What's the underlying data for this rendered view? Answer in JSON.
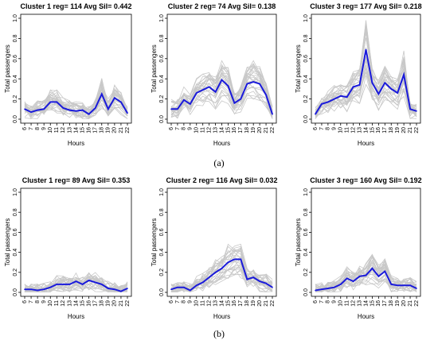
{
  "figure": {
    "row_labels": [
      "(a)",
      "(b)"
    ],
    "colors": {
      "mean_line": "#1a1adb",
      "member_lines": "#c8c8c8",
      "axis": "#000000"
    }
  },
  "chart_data": [
    {
      "type": "line",
      "title": "Cluster 1 reg= 114 Avg Sil= 0.442",
      "xlabel": "Hours",
      "ylabel": "Total passengers",
      "x": [
        6,
        7,
        8,
        9,
        10,
        11,
        12,
        13,
        14,
        15,
        16,
        17,
        18,
        19,
        20,
        21,
        22
      ],
      "ylim": [
        0,
        1.0
      ],
      "yticks": [
        "0.0",
        "0.2",
        "0.4",
        "0.6",
        "0.8",
        "1.0"
      ],
      "series": [
        {
          "values": [
            0.1,
            0.07,
            0.09,
            0.1,
            0.17,
            0.17,
            0.11,
            0.09,
            0.08,
            0.09,
            0.05,
            0.11,
            0.25,
            0.1,
            0.21,
            0.17,
            0.06
          ]
        }
      ]
    },
    {
      "type": "line",
      "title": "Cluster 2 reg= 74 Avg Sil= 0.138",
      "xlabel": "Hours",
      "ylabel": "Total passengers",
      "x": [
        6,
        7,
        8,
        9,
        10,
        11,
        12,
        13,
        14,
        15,
        16,
        17,
        18,
        19,
        20,
        21,
        22
      ],
      "ylim": [
        0,
        1.0
      ],
      "yticks": [
        "0.0",
        "0.2",
        "0.4",
        "0.6",
        "0.8",
        "1.0"
      ],
      "series": [
        {
          "values": [
            0.1,
            0.1,
            0.19,
            0.15,
            0.26,
            0.29,
            0.32,
            0.27,
            0.39,
            0.33,
            0.16,
            0.2,
            0.35,
            0.37,
            0.35,
            0.24,
            0.05
          ]
        }
      ]
    },
    {
      "type": "line",
      "title": "Cluster 3 reg= 177 Avg Sil= 0.218",
      "xlabel": "Hours",
      "ylabel": "Total passengers",
      "x": [
        6,
        7,
        8,
        9,
        10,
        11,
        12,
        13,
        14,
        15,
        16,
        17,
        18,
        19,
        20,
        21,
        22
      ],
      "ylim": [
        0,
        1.0
      ],
      "yticks": [
        "0.0",
        "0.2",
        "0.4",
        "0.6",
        "0.8",
        "1.0"
      ],
      "series": [
        {
          "values": [
            0.05,
            0.15,
            0.17,
            0.2,
            0.23,
            0.22,
            0.32,
            0.34,
            0.69,
            0.36,
            0.25,
            0.36,
            0.3,
            0.26,
            0.44,
            0.1,
            0.08
          ]
        }
      ]
    },
    {
      "type": "line",
      "title": "Cluster 1 reg= 89 Avg Sil= 0.353",
      "xlabel": "Hours",
      "ylabel": "Total passengers",
      "x": [
        6,
        7,
        8,
        9,
        10,
        11,
        12,
        13,
        14,
        15,
        16,
        17,
        18,
        19,
        20,
        21,
        22
      ],
      "ylim": [
        0,
        1.0
      ],
      "yticks": [
        "0.0",
        "0.2",
        "0.4",
        "0.6",
        "0.8",
        "1.0"
      ],
      "series": [
        {
          "values": [
            0.03,
            0.03,
            0.02,
            0.03,
            0.05,
            0.08,
            0.08,
            0.08,
            0.11,
            0.08,
            0.12,
            0.1,
            0.08,
            0.04,
            0.03,
            0.01,
            0.04
          ]
        }
      ]
    },
    {
      "type": "line",
      "title": "Cluster 2 reg= 116 Avg Sil= 0.032",
      "xlabel": "Hours",
      "ylabel": "Total passengers",
      "x": [
        6,
        7,
        8,
        9,
        10,
        11,
        12,
        13,
        14,
        15,
        16,
        17,
        18,
        19,
        20,
        21,
        22
      ],
      "ylim": [
        0,
        1.0
      ],
      "yticks": [
        "0.0",
        "0.2",
        "0.4",
        "0.6",
        "0.8",
        "1.0"
      ],
      "series": [
        {
          "values": [
            0.03,
            0.05,
            0.05,
            0.02,
            0.07,
            0.1,
            0.15,
            0.2,
            0.24,
            0.3,
            0.33,
            0.33,
            0.13,
            0.15,
            0.11,
            0.09,
            0.05
          ]
        }
      ]
    },
    {
      "type": "line",
      "title": "Cluster 3 reg= 160 Avg Sil= 0.192",
      "xlabel": "Hours",
      "ylabel": "Total passengers",
      "x": [
        6,
        7,
        8,
        9,
        10,
        11,
        12,
        13,
        14,
        15,
        16,
        17,
        18,
        19,
        20,
        21,
        22
      ],
      "ylim": [
        0,
        1.0
      ],
      "yticks": [
        "0.0",
        "0.2",
        "0.4",
        "0.6",
        "0.8",
        "1.0"
      ],
      "series": [
        {
          "values": [
            0.02,
            0.03,
            0.04,
            0.05,
            0.08,
            0.14,
            0.11,
            0.16,
            0.17,
            0.24,
            0.16,
            0.21,
            0.08,
            0.07,
            0.07,
            0.07,
            0.04
          ]
        }
      ]
    }
  ]
}
